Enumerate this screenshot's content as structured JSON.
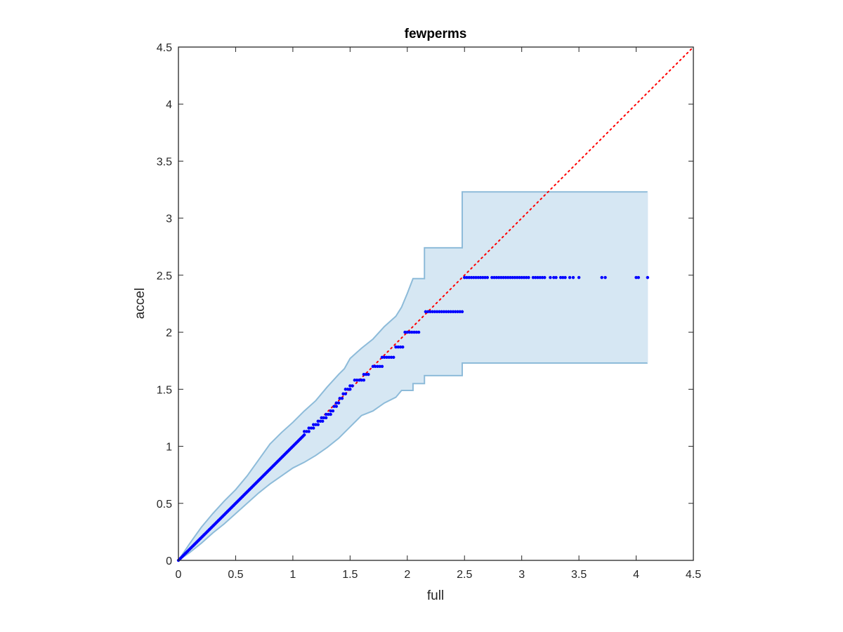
{
  "chart_data": {
    "type": "scatter",
    "title": "fewperms",
    "xlabel": "full",
    "ylabel": "accel",
    "xlim": [
      0,
      4.5
    ],
    "ylim": [
      0,
      4.5
    ],
    "xticks": [
      "0",
      "0.5",
      "1",
      "1.5",
      "2",
      "2.5",
      "3",
      "3.5",
      "4",
      "4.5"
    ],
    "yticks": [
      "0",
      "0.5",
      "1",
      "1.5",
      "2",
      "2.5",
      "3",
      "3.5",
      "4",
      "4.5"
    ],
    "grid": false,
    "reference_line": {
      "type": "identity",
      "from": [
        0,
        0
      ],
      "to": [
        4.5,
        4.5
      ],
      "style": "dotted",
      "color": "#ff0000"
    },
    "band": {
      "color_fill": "#d6e7f3",
      "color_edge": "#8dbbd9",
      "upper": [
        [
          0,
          0
        ],
        [
          0.1,
          0.15
        ],
        [
          0.2,
          0.29
        ],
        [
          0.3,
          0.41
        ],
        [
          0.4,
          0.52
        ],
        [
          0.5,
          0.62
        ],
        [
          0.6,
          0.74
        ],
        [
          0.7,
          0.88
        ],
        [
          0.8,
          1.02
        ],
        [
          0.9,
          1.12
        ],
        [
          1.0,
          1.21
        ],
        [
          1.1,
          1.31
        ],
        [
          1.2,
          1.4
        ],
        [
          1.3,
          1.52
        ],
        [
          1.4,
          1.63
        ],
        [
          1.45,
          1.68
        ],
        [
          1.5,
          1.77
        ],
        [
          1.6,
          1.86
        ],
        [
          1.7,
          1.94
        ],
        [
          1.8,
          2.05
        ],
        [
          1.9,
          2.14
        ],
        [
          1.95,
          2.22
        ],
        [
          2.0,
          2.34
        ],
        [
          2.05,
          2.47
        ],
        [
          2.15,
          2.47
        ],
        [
          2.15,
          2.74
        ],
        [
          2.48,
          2.74
        ],
        [
          2.48,
          3.23
        ],
        [
          4.1,
          3.23
        ]
      ],
      "lower": [
        [
          0,
          0
        ],
        [
          0.1,
          0.07
        ],
        [
          0.2,
          0.15
        ],
        [
          0.3,
          0.24
        ],
        [
          0.4,
          0.32
        ],
        [
          0.5,
          0.41
        ],
        [
          0.6,
          0.5
        ],
        [
          0.7,
          0.59
        ],
        [
          0.8,
          0.67
        ],
        [
          0.9,
          0.74
        ],
        [
          1.0,
          0.81
        ],
        [
          1.1,
          0.86
        ],
        [
          1.2,
          0.92
        ],
        [
          1.3,
          0.99
        ],
        [
          1.4,
          1.07
        ],
        [
          1.5,
          1.17
        ],
        [
          1.6,
          1.27
        ],
        [
          1.7,
          1.31
        ],
        [
          1.8,
          1.38
        ],
        [
          1.9,
          1.43
        ],
        [
          1.95,
          1.49
        ],
        [
          2.05,
          1.49
        ],
        [
          2.05,
          1.55
        ],
        [
          2.15,
          1.55
        ],
        [
          2.15,
          1.62
        ],
        [
          2.48,
          1.62
        ],
        [
          2.48,
          1.73
        ],
        [
          4.1,
          1.73
        ]
      ]
    },
    "series": [
      {
        "color": "#0000ff",
        "diagonal_segment": {
          "from": [
            0,
            0
          ],
          "to": [
            1.1,
            1.1
          ],
          "step": 0.01
        },
        "levels": [
          {
            "y": 1.13,
            "x": [
              1.1,
              1.12,
              1.14
            ]
          },
          {
            "y": 1.16,
            "x": [
              1.14,
              1.16,
              1.18
            ]
          },
          {
            "y": 1.19,
            "x": [
              1.18,
              1.2,
              1.22
            ]
          },
          {
            "y": 1.22,
            "x": [
              1.22,
              1.24,
              1.26
            ]
          },
          {
            "y": 1.25,
            "x": [
              1.25,
              1.27,
              1.29
            ]
          },
          {
            "y": 1.28,
            "x": [
              1.29,
              1.31,
              1.33
            ]
          },
          {
            "y": 1.31,
            "x": [
              1.33,
              1.35
            ]
          },
          {
            "y": 1.35,
            "x": [
              1.36,
              1.38
            ]
          },
          {
            "y": 1.38,
            "x": [
              1.38,
              1.4
            ]
          },
          {
            "y": 1.42,
            "x": [
              1.41,
              1.43
            ]
          },
          {
            "y": 1.46,
            "x": [
              1.44,
              1.46
            ]
          },
          {
            "y": 1.5,
            "x": [
              1.46,
              1.48,
              1.5
            ]
          },
          {
            "y": 1.53,
            "x": [
              1.5,
              1.52
            ]
          },
          {
            "y": 1.58,
            "x": [
              1.54,
              1.56,
              1.58,
              1.6,
              1.62
            ]
          },
          {
            "y": 1.63,
            "x": [
              1.62,
              1.64,
              1.66
            ]
          },
          {
            "y": 1.7,
            "x": [
              1.7,
              1.72,
              1.74,
              1.76,
              1.78
            ]
          },
          {
            "y": 1.78,
            "x": [
              1.78,
              1.8,
              1.82,
              1.84,
              1.86,
              1.88
            ]
          },
          {
            "y": 1.87,
            "x": [
              1.9,
              1.92,
              1.94,
              1.96
            ]
          },
          {
            "y": 2.0,
            "x": [
              1.98,
              2.0,
              2.02,
              2.04,
              2.06,
              2.08,
              2.1
            ]
          },
          {
            "y": 2.18,
            "x": [
              2.16,
              2.18,
              2.2,
              2.22,
              2.24,
              2.26,
              2.28,
              2.3,
              2.32,
              2.34,
              2.36,
              2.38,
              2.4,
              2.42,
              2.44,
              2.46,
              2.48
            ]
          },
          {
            "y": 2.48,
            "x": [
              2.5,
              2.52,
              2.54,
              2.56,
              2.58,
              2.6,
              2.62,
              2.64,
              2.66,
              2.68,
              2.7,
              2.74,
              2.76,
              2.78,
              2.8,
              2.82,
              2.84,
              2.86,
              2.88,
              2.9,
              2.92,
              2.94,
              2.96,
              2.98,
              3.0,
              3.02,
              3.04,
              3.06,
              3.1,
              3.12,
              3.14,
              3.16,
              3.18,
              3.2,
              3.25,
              3.28,
              3.3,
              3.34,
              3.36,
              3.38,
              3.42,
              3.45,
              3.5,
              3.7,
              3.73,
              4.0,
              4.02,
              4.1
            ]
          }
        ]
      }
    ]
  }
}
